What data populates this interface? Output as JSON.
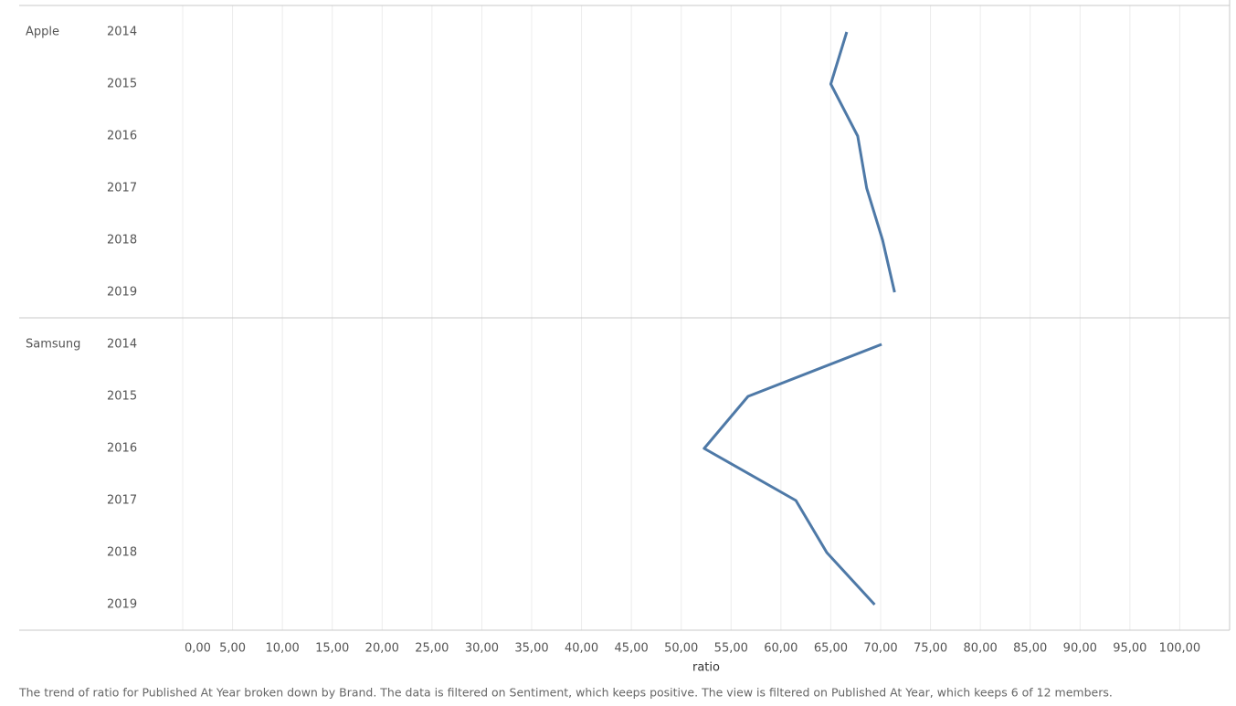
{
  "chart_data": {
    "type": "line",
    "orientation": "horizontal",
    "x_label": "ratio",
    "caption": "The trend of ratio for Published At Year broken down by Brand. The data is filtered on Sentiment, which keeps positive. The view is filtered on Published At Year, which keeps 6 of 12 members.",
    "categories": [
      "2014",
      "2015",
      "2016",
      "2017",
      "2018",
      "2019"
    ],
    "series": [
      {
        "name": "Apple",
        "color": "#4e79a7",
        "values": [
          66.6,
          65.0,
          67.7,
          68.6,
          70.2,
          71.4
        ]
      },
      {
        "name": "Samsung",
        "color": "#4e79a7",
        "values": [
          70.1,
          56.7,
          52.3,
          61.5,
          64.6,
          69.4
        ]
      }
    ],
    "xlim": [
      0,
      105
    ],
    "xticks": [
      {
        "value": 0,
        "label": "0,00"
      },
      {
        "value": 5,
        "label": "5,00"
      },
      {
        "value": 10,
        "label": "10,00"
      },
      {
        "value": 15,
        "label": "15,00"
      },
      {
        "value": 20,
        "label": "20,00"
      },
      {
        "value": 25,
        "label": "25,00"
      },
      {
        "value": 30,
        "label": "30,00"
      },
      {
        "value": 35,
        "label": "35,00"
      },
      {
        "value": 40,
        "label": "40,00"
      },
      {
        "value": 45,
        "label": "45,00"
      },
      {
        "value": 50,
        "label": "50,00"
      },
      {
        "value": 55,
        "label": "55,00"
      },
      {
        "value": 60,
        "label": "60,00"
      },
      {
        "value": 65,
        "label": "65,00"
      },
      {
        "value": 70,
        "label": "70,00"
      },
      {
        "value": 75,
        "label": "75,00"
      },
      {
        "value": 80,
        "label": "80,00"
      },
      {
        "value": 85,
        "label": "85,00"
      },
      {
        "value": 90,
        "label": "90,00"
      },
      {
        "value": 95,
        "label": "95,00"
      },
      {
        "value": 100,
        "label": "100,00"
      }
    ],
    "grid": true
  }
}
